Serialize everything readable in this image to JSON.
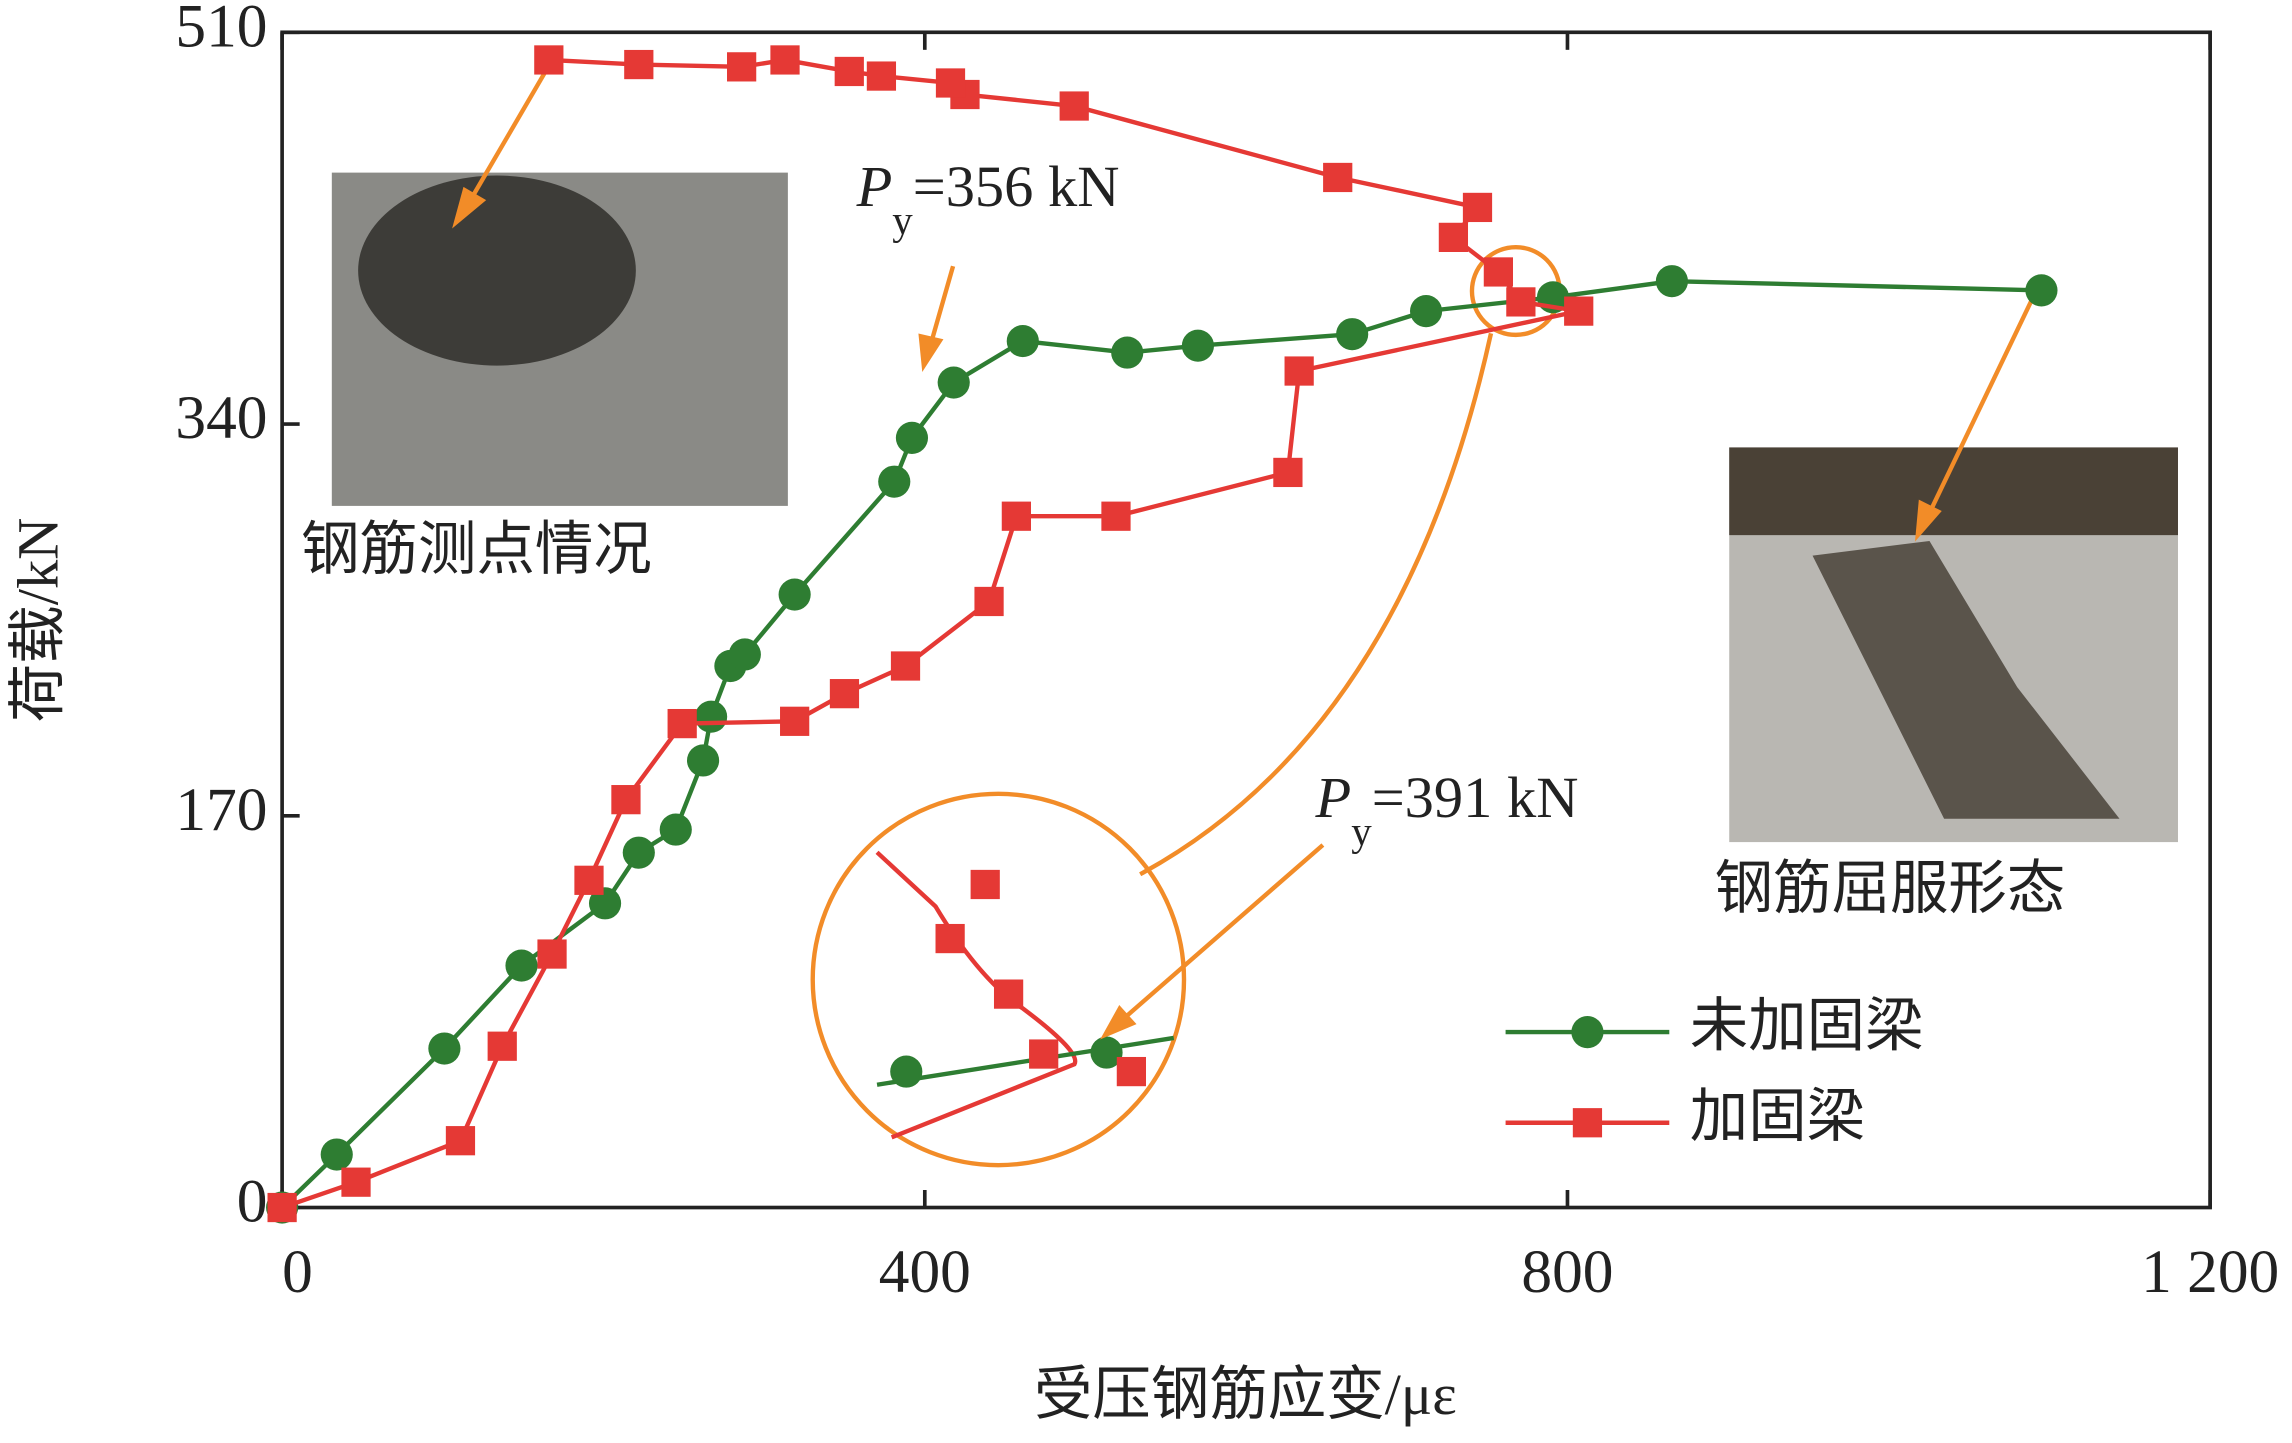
{
  "chart_data": {
    "type": "line",
    "xlabel": "受压钢筋应变/με",
    "ylabel": "荷载/kN",
    "xlim": [
      0,
      1200
    ],
    "ylim": [
      0,
      510
    ],
    "xticks": [
      0,
      400,
      800,
      {
        "value": 1200,
        "label": "1 200"
      }
    ],
    "yticks": [
      0,
      170,
      340,
      510
    ],
    "legend": "lower right",
    "series": [
      {
        "name": "未加固梁",
        "color": "#2e7d32",
        "marker": "circle",
        "x": [
          0,
          34,
          101,
          149,
          201,
          222,
          245,
          262,
          267,
          279,
          288,
          319,
          381,
          392,
          418,
          461,
          526,
          570,
          666,
          712,
          791,
          865,
          1095
        ],
        "values": [
          0,
          23,
          69,
          105,
          132,
          154,
          164,
          194,
          213,
          235,
          240,
          266,
          315,
          334,
          358,
          376,
          371,
          374,
          379,
          389,
          395,
          402,
          398
        ]
      },
      {
        "name": "加固梁",
        "color": "#e53935",
        "marker": "square",
        "x": [
          0,
          46,
          111,
          137,
          168,
          191,
          214,
          249,
          319,
          350,
          388,
          440,
          457,
          519,
          626,
          633,
          807,
          771,
          757,
          729,
          744,
          657,
          493,
          425,
          416,
          373,
          353,
          313,
          286,
          222,
          166
        ],
        "values": [
          0,
          11,
          29,
          70,
          110,
          142,
          177,
          210,
          211,
          223,
          235,
          263,
          300,
          300,
          319,
          363,
          389,
          393,
          406,
          421,
          434,
          447,
          478,
          483,
          488,
          491,
          493,
          498,
          495,
          496,
          498
        ]
      }
    ],
    "annotations": [
      {
        "symbol": "P",
        "subscript": "y",
        "text": "=356 kN"
      },
      {
        "symbol": "P",
        "subscript": "y",
        "text": "=391 kN"
      },
      {
        "text": "钢筋测点情况"
      },
      {
        "text": "钢筋屈服形态"
      }
    ]
  }
}
